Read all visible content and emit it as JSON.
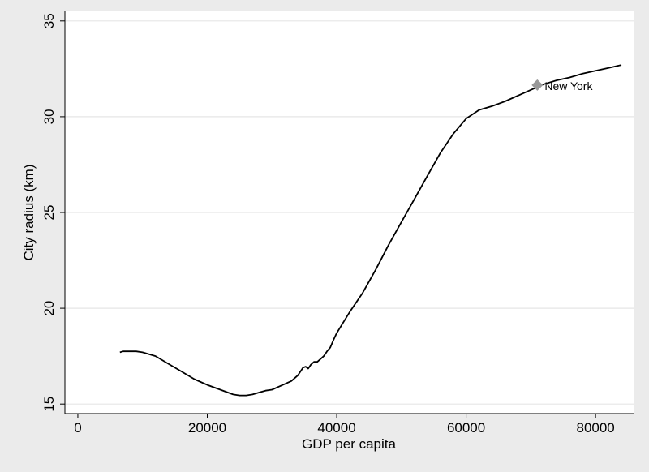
{
  "chart_data": {
    "type": "line",
    "title": "",
    "xlabel": "GDP per capita",
    "ylabel": "City radius (km)",
    "xlim": [
      -2000,
      86000
    ],
    "ylim": [
      14.5,
      35.5
    ],
    "xticks": [
      0,
      20000,
      40000,
      60000,
      80000
    ],
    "yticks": [
      15,
      20,
      25,
      30,
      35
    ],
    "grid": "horizontal",
    "legend": "none",
    "colors": {
      "background": "#ebebeb",
      "plot_area": "#ffffff",
      "line": "#000000",
      "marker": "#999999",
      "grid": "#e6e6e6"
    },
    "series": [
      {
        "x": [
          6500,
          7000,
          8000,
          9000,
          10000,
          12000,
          14000,
          16000,
          18000,
          20000,
          22000,
          24000,
          25000,
          26000,
          27000,
          28000,
          29000,
          30000,
          31000,
          32000,
          33000,
          34000,
          34800,
          35200,
          35600,
          36000,
          36500,
          37000,
          37500,
          38000,
          38500,
          39000,
          39500,
          40000,
          42000,
          44000,
          46000,
          48000,
          50000,
          52000,
          54000,
          56000,
          58000,
          60000,
          62000,
          64000,
          66000,
          68000,
          70000,
          72000,
          74000,
          76000,
          78000,
          80000,
          82000,
          84000
        ],
        "y": [
          17.7,
          17.75,
          17.75,
          17.75,
          17.7,
          17.5,
          17.1,
          16.7,
          16.3,
          16.0,
          15.75,
          15.5,
          15.45,
          15.45,
          15.5,
          15.6,
          15.7,
          15.75,
          15.9,
          16.05,
          16.2,
          16.5,
          16.9,
          16.95,
          16.85,
          17.05,
          17.2,
          17.2,
          17.35,
          17.5,
          17.75,
          17.95,
          18.35,
          18.7,
          19.8,
          20.8,
          22.0,
          23.3,
          24.5,
          25.7,
          26.9,
          28.1,
          29.1,
          29.9,
          30.35,
          30.55,
          30.8,
          31.1,
          31.4,
          31.7,
          31.9,
          32.05,
          32.25,
          32.4,
          32.55,
          32.7
        ]
      }
    ],
    "points": [
      {
        "label": "New York",
        "x": 71000,
        "y": 31.65
      }
    ]
  }
}
